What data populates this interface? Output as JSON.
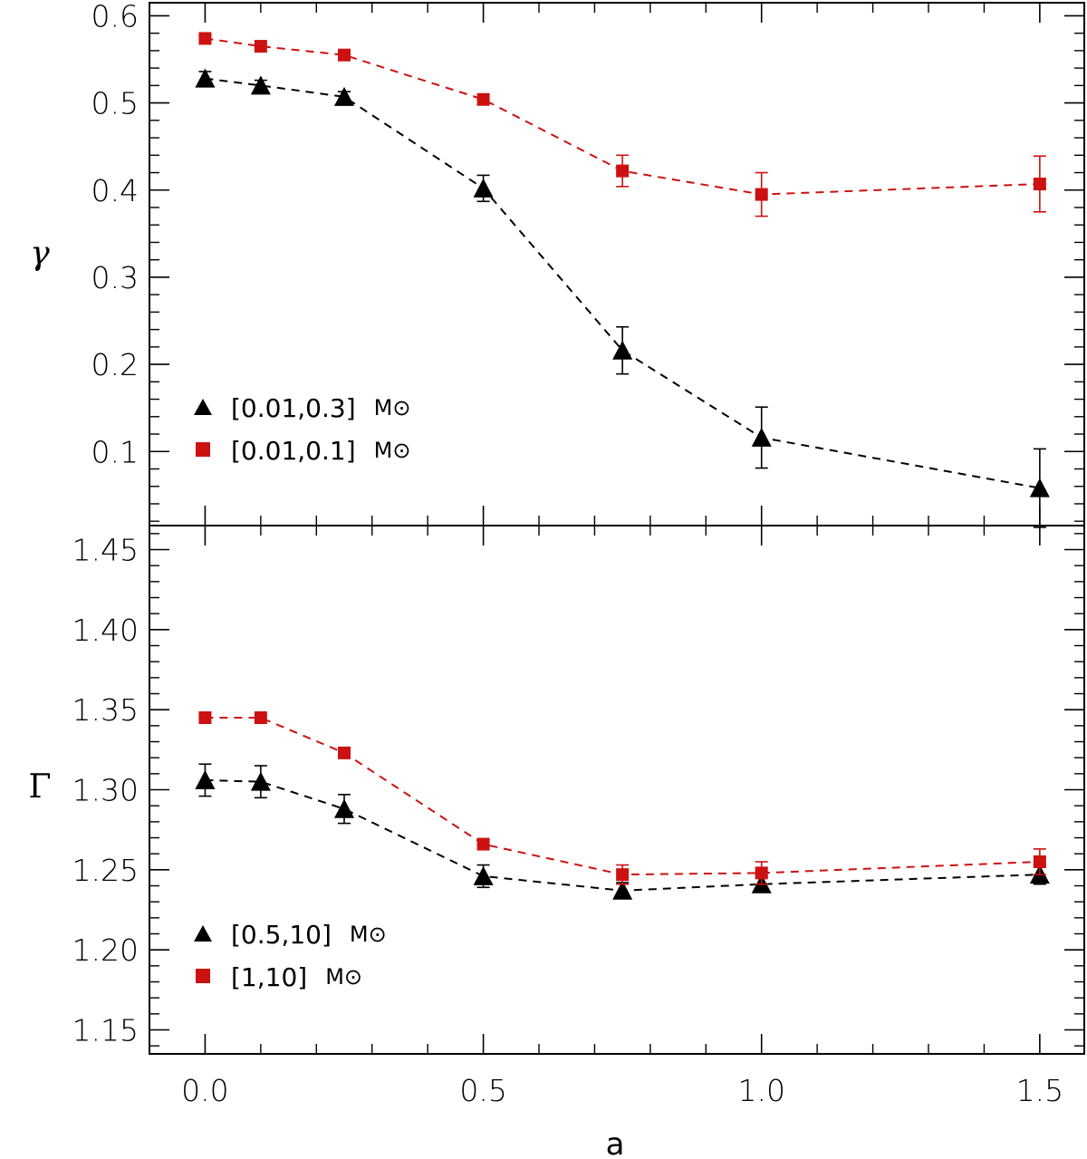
{
  "chart_data": [
    {
      "type": "line",
      "panel": "top",
      "title": "",
      "xlabel": "",
      "ylabel": "γ",
      "xlim": [
        -0.1,
        1.58
      ],
      "ylim": [
        0.015,
        0.615
      ],
      "yticks": [
        0.1,
        0.2,
        0.3,
        0.4,
        0.5,
        0.6
      ],
      "ytick_labels": [
        "0.1",
        "0.2",
        "0.3",
        "0.4",
        "0.5",
        "0.6"
      ],
      "legend_placement": "bottom-left",
      "x": [
        0.0,
        0.1,
        0.25,
        0.5,
        0.75,
        1.0,
        1.5
      ],
      "series": [
        {
          "name": "[0.01,0.3] M⊙",
          "legend_label": "[0.01,0.3]",
          "legend_unit": "M⊙",
          "color": "#000000",
          "marker": "triangle",
          "linestyle": "dashed",
          "values": [
            0.528,
            0.52,
            0.507,
            0.402,
            0.216,
            0.116,
            0.058
          ],
          "errors": [
            0.008,
            0.006,
            0.006,
            0.015,
            0.027,
            0.035,
            0.045
          ]
        },
        {
          "name": "[0.01,0.1] M⊙",
          "legend_label": "[0.01,0.1]",
          "legend_unit": "M⊙",
          "color": "#cc1111",
          "marker": "square",
          "linestyle": "dashed",
          "values": [
            0.574,
            0.565,
            0.555,
            0.504,
            0.422,
            0.395,
            0.407
          ],
          "errors": [
            0.0,
            0.0,
            0.0,
            0.0,
            0.018,
            0.025,
            0.032
          ]
        }
      ]
    },
    {
      "type": "line",
      "panel": "bottom",
      "title": "",
      "xlabel": "a",
      "ylabel": "Γ",
      "xlim": [
        -0.1,
        1.58
      ],
      "ylim": [
        1.135,
        1.465
      ],
      "yticks": [
        1.15,
        1.2,
        1.25,
        1.3,
        1.35,
        1.4,
        1.45
      ],
      "ytick_labels": [
        "1.15",
        "1.20",
        "1.25",
        "1.30",
        "1.35",
        "1.40",
        "1.45"
      ],
      "xticks": [
        0.0,
        0.5,
        1.0,
        1.5
      ],
      "xtick_labels": [
        "0.0",
        "0.5",
        "1.0",
        "1.5"
      ],
      "legend_placement": "bottom-left",
      "x": [
        0.0,
        0.1,
        0.25,
        0.5,
        0.75,
        1.0,
        1.5
      ],
      "series": [
        {
          "name": "[0.5,10] M⊙",
          "legend_label": "[0.5,10]",
          "legend_unit": "M⊙",
          "color": "#000000",
          "marker": "triangle",
          "linestyle": "dashed",
          "values": [
            1.306,
            1.305,
            1.288,
            1.246,
            1.237,
            1.241,
            1.247
          ],
          "errors": [
            0.01,
            0.01,
            0.009,
            0.007,
            0.005,
            0.005,
            0.006
          ]
        },
        {
          "name": "[1,10] M⊙",
          "legend_label": "[1,10]",
          "legend_unit": "M⊙",
          "color": "#cc1111",
          "marker": "square",
          "linestyle": "dashed",
          "values": [
            1.345,
            1.345,
            1.323,
            1.266,
            1.247,
            1.248,
            1.255
          ],
          "errors": [
            0.0,
            0.0,
            0.0,
            0.0,
            0.006,
            0.007,
            0.008
          ]
        }
      ]
    }
  ]
}
